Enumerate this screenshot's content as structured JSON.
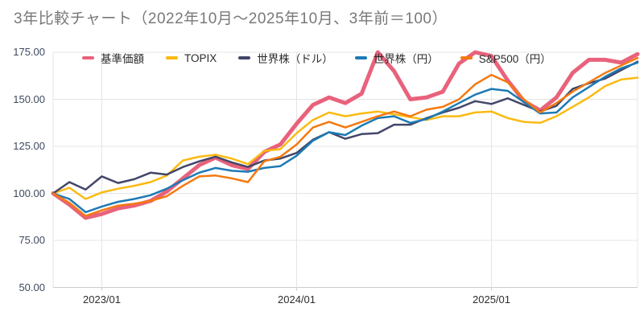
{
  "chart": {
    "title": "3年比較チャート（2022年10月〜2025年10月、3年前＝100）"
  },
  "chart_data": {
    "type": "line",
    "title": "3年比較チャート（2022年10月〜2025年10月、3年前＝100）",
    "baseline_note": "3年前＝100",
    "ylim": [
      50,
      175
    ],
    "y_ticks": [
      50,
      75,
      100,
      125,
      150,
      175
    ],
    "y_tick_labels": [
      "50.00",
      "75.00",
      "100.00",
      "125.00",
      "150.00",
      "175.00"
    ],
    "x_tick_labels": [
      "2023/01",
      "2024/01",
      "2025/01"
    ],
    "x_tick_month_indices": [
      3,
      15,
      27
    ],
    "grid": "on",
    "legend_position": "top",
    "months": [
      "2022/10",
      "2022/11",
      "2022/12",
      "2023/01",
      "2023/02",
      "2023/03",
      "2023/04",
      "2023/05",
      "2023/06",
      "2023/07",
      "2023/08",
      "2023/09",
      "2023/10",
      "2023/11",
      "2023/12",
      "2024/01",
      "2024/02",
      "2024/03",
      "2024/04",
      "2024/05",
      "2024/06",
      "2024/07",
      "2024/08",
      "2024/09",
      "2024/10",
      "2024/11",
      "2024/12",
      "2025/01",
      "2025/02",
      "2025/03",
      "2025/04",
      "2025/05",
      "2025/06",
      "2025/07",
      "2025/08",
      "2025/09",
      "2025/10"
    ],
    "series": [
      {
        "name": "基準価額",
        "color": "#e8627c",
        "stroke_width": 5,
        "values": [
          100,
          94,
          87,
          89,
          92,
          93.5,
          96,
          101,
          108,
          115,
          119,
          115,
          113,
          122,
          126,
          137,
          147,
          151,
          148,
          153,
          175,
          165,
          150,
          151,
          154,
          169,
          175,
          173,
          160,
          149,
          144,
          151,
          164,
          171,
          171,
          169.5,
          174
        ]
      },
      {
        "name": "TOPIX",
        "color": "#fbba12",
        "stroke_width": 2.5,
        "values": [
          100,
          103,
          97,
          100.5,
          102.5,
          104,
          106,
          109.5,
          117.5,
          119.5,
          120.5,
          118.5,
          115.5,
          122.5,
          123.5,
          132,
          139,
          143,
          141,
          142.5,
          143.5,
          142,
          140.5,
          139,
          141,
          141,
          143,
          143.5,
          140,
          138,
          137.5,
          141,
          146,
          151,
          157,
          160.5,
          161.5
        ]
      },
      {
        "name": "世界株（ドル）",
        "color": "#424668",
        "stroke_width": 2.5,
        "values": [
          100,
          106,
          102,
          109,
          105.5,
          107.5,
          111,
          110,
          114,
          117,
          119.5,
          116.5,
          114,
          117.5,
          118.5,
          121.5,
          128.5,
          132.5,
          129,
          131.5,
          132,
          136.5,
          136.5,
          140,
          143,
          145.5,
          149,
          147.5,
          150.5,
          147,
          143.5,
          146.5,
          155.5,
          158.5,
          161,
          165.5,
          170
        ]
      },
      {
        "name": "世界株（円）",
        "color": "#1d7ab5",
        "stroke_width": 2.5,
        "values": [
          100,
          97,
          90,
          93,
          95.5,
          97,
          99,
          102.5,
          107,
          111,
          113.5,
          112,
          111.5,
          113.5,
          114.5,
          120,
          128,
          132.5,
          131,
          136,
          140,
          141,
          137.5,
          139.5,
          143.5,
          148,
          152.5,
          155.5,
          154.5,
          148.5,
          142.5,
          143,
          151,
          156.5,
          162,
          166.5,
          169.5
        ]
      },
      {
        "name": "S&P500（円）",
        "color": "#f5790f",
        "stroke_width": 2.5,
        "values": [
          100,
          95,
          88,
          91,
          93.5,
          94.5,
          96,
          98.5,
          104,
          109,
          109.5,
          108,
          106,
          117,
          119.5,
          126,
          135,
          138,
          135,
          138,
          141,
          143.5,
          141,
          144.5,
          146,
          150,
          158,
          163,
          159,
          150,
          143,
          148,
          154,
          159,
          164,
          168,
          172
        ]
      }
    ],
    "colors": {
      "gridline": "#e4e4e4",
      "axis_line": "#cccccc",
      "title_text": "#787878",
      "y_label_text": "#3e4a5f",
      "x_label_text": "#2e2e2e"
    }
  }
}
